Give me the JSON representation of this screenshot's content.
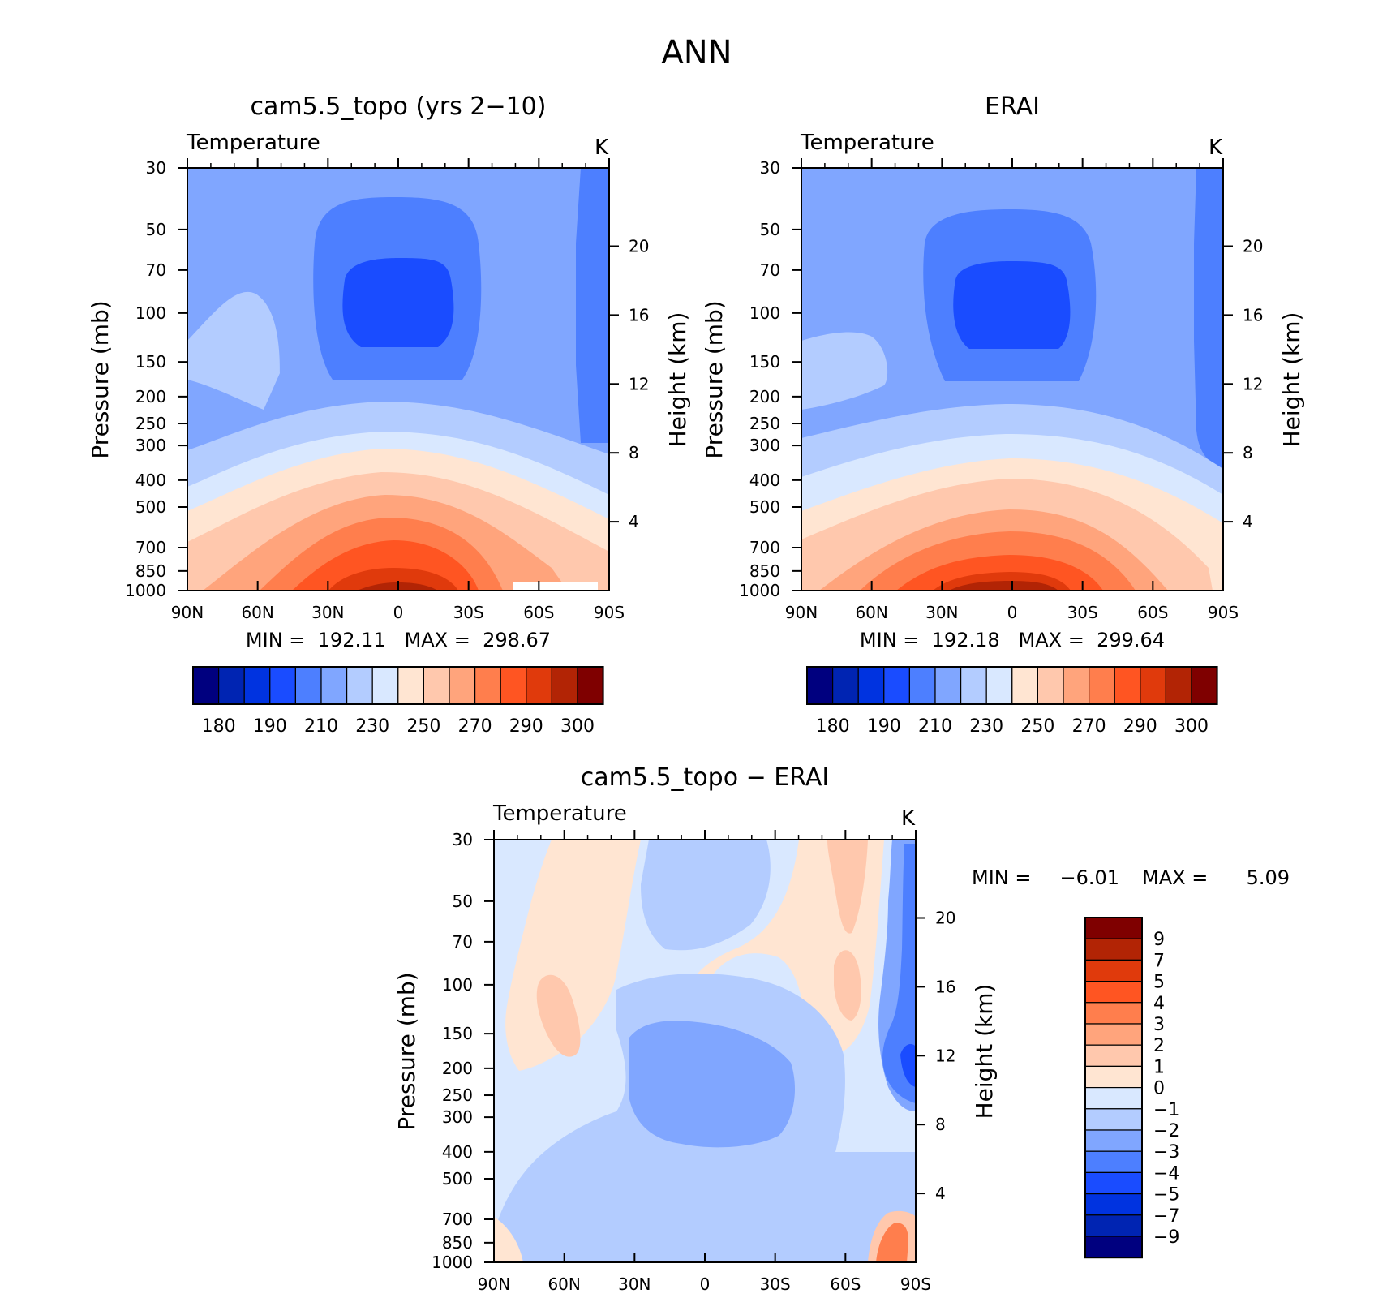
{
  "page_title": "ANN",
  "colors": {
    "abs_levels": [
      "#00007f",
      "#0024b2",
      "#0033e0",
      "#1a4cff",
      "#4d7fff",
      "#80a6ff",
      "#b3ccff",
      "#d9e8ff",
      "#ffe5d2",
      "#ffc8ad",
      "#ffa47c",
      "#ff7e4d",
      "#ff5522",
      "#e03a0c",
      "#b22405",
      "#7f0000"
    ],
    "diff_levels": [
      "#00007f",
      "#0024b2",
      "#0033e0",
      "#1a4cff",
      "#4d7fff",
      "#80a6ff",
      "#b3ccff",
      "#d9e8ff",
      "#ffe5d2",
      "#ffc8ad",
      "#ffa47c",
      "#ff7e4d",
      "#ff5522",
      "#e03a0c",
      "#b22405",
      "#7f0000"
    ]
  },
  "chart_data": [
    {
      "type": "heatmap",
      "title": "cam5.5_topo (yrs 2−10)",
      "variable_label": "Temperature",
      "units": "K",
      "ylabel": "Pressure (mb)",
      "ylabel_right": "Height (km)",
      "xticks": [
        "90N",
        "60N",
        "30N",
        "0",
        "30S",
        "60S",
        "90S"
      ],
      "yticks": [
        30,
        50,
        70,
        100,
        150,
        200,
        250,
        300,
        400,
        500,
        700,
        850,
        1000
      ],
      "yticks_right": [
        20,
        16,
        12,
        8,
        4
      ],
      "ylim": [
        1000,
        30
      ],
      "y_scale": "log",
      "stats": "MIN =  192.11   MAX =  298.67",
      "min": 192.11,
      "max": 298.67,
      "colorbar": {
        "orientation": "horizontal",
        "labels": [
          "180",
          "190",
          "210",
          "230",
          "250",
          "270",
          "290",
          "300"
        ]
      }
    },
    {
      "type": "heatmap",
      "title": "ERAI",
      "variable_label": "Temperature",
      "units": "K",
      "ylabel": "Pressure (mb)",
      "ylabel_right": "Height (km)",
      "xticks": [
        "90N",
        "60N",
        "30N",
        "0",
        "30S",
        "60S",
        "90S"
      ],
      "yticks": [
        30,
        50,
        70,
        100,
        150,
        200,
        250,
        300,
        400,
        500,
        700,
        850,
        1000
      ],
      "yticks_right": [
        20,
        16,
        12,
        8,
        4
      ],
      "ylim": [
        1000,
        30
      ],
      "y_scale": "log",
      "stats": "MIN =  192.18   MAX =  299.64",
      "min": 192.18,
      "max": 299.64,
      "colorbar": {
        "orientation": "horizontal",
        "labels": [
          "180",
          "190",
          "210",
          "230",
          "250",
          "270",
          "290",
          "300"
        ]
      }
    },
    {
      "type": "heatmap",
      "title": "cam5.5_topo − ERAI",
      "variable_label": "Temperature",
      "units": "K",
      "ylabel": "Pressure (mb)",
      "ylabel_right": "Height (km)",
      "xticks": [
        "90N",
        "60N",
        "30N",
        "0",
        "30S",
        "60S",
        "90S"
      ],
      "yticks": [
        30,
        50,
        70,
        100,
        150,
        200,
        250,
        300,
        400,
        500,
        700,
        850,
        1000
      ],
      "yticks_right": [
        20,
        16,
        12,
        8,
        4
      ],
      "ylim": [
        1000,
        30
      ],
      "y_scale": "log",
      "stats_min_label": "MIN =",
      "stats_min_value": "−6.01",
      "stats_max_label": "MAX =",
      "stats_max_value": "5.09",
      "min": -6.01,
      "max": 5.09,
      "colorbar": {
        "orientation": "vertical",
        "labels": [
          "9",
          "7",
          "5",
          "4",
          "3",
          "2",
          "1",
          "0",
          "−1",
          "−2",
          "−3",
          "−4",
          "−5",
          "−7",
          "−9"
        ]
      }
    }
  ]
}
